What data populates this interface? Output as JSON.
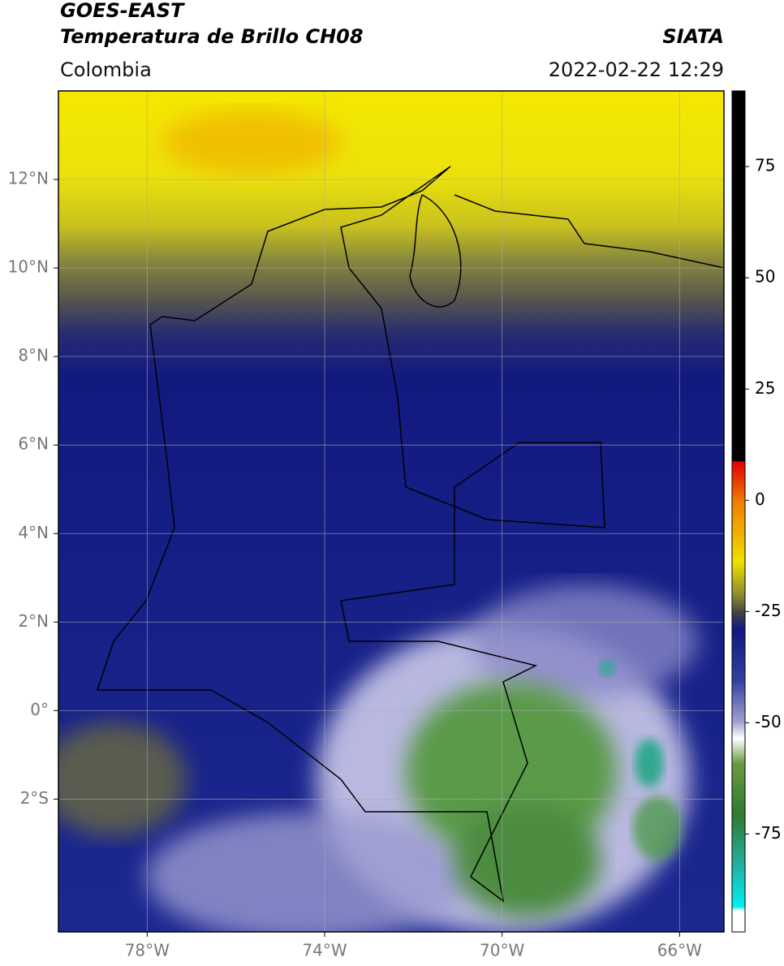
{
  "header": {
    "title": "GOES-EAST",
    "subtitle": "Temperatura de Brillo CH08",
    "source": "SIATA",
    "region": "Colombia",
    "datetime": "2022-02-22 12:29"
  },
  "map": {
    "xlim": [
      -80,
      -65
    ],
    "ylim": [
      -5,
      14
    ],
    "grid": true,
    "xticks": [
      {
        "value": -78,
        "label": "78°W"
      },
      {
        "value": -74,
        "label": "74°W"
      },
      {
        "value": -70,
        "label": "70°W"
      },
      {
        "value": -66,
        "label": "66°W"
      }
    ],
    "yticks": [
      {
        "value": 12,
        "label": "12°N"
      },
      {
        "value": 10,
        "label": "10°N"
      },
      {
        "value": 8,
        "label": "8°N"
      },
      {
        "value": 6,
        "label": "6°N"
      },
      {
        "value": 4,
        "label": "4°N"
      },
      {
        "value": 2,
        "label": "2°N"
      },
      {
        "value": 0,
        "label": "0°"
      },
      {
        "value": -2,
        "label": "2°S"
      }
    ]
  },
  "colorbar": {
    "lim": [
      -97,
      92
    ],
    "ticks": [
      75,
      50,
      25,
      0,
      -25,
      -50,
      -75
    ]
  }
}
